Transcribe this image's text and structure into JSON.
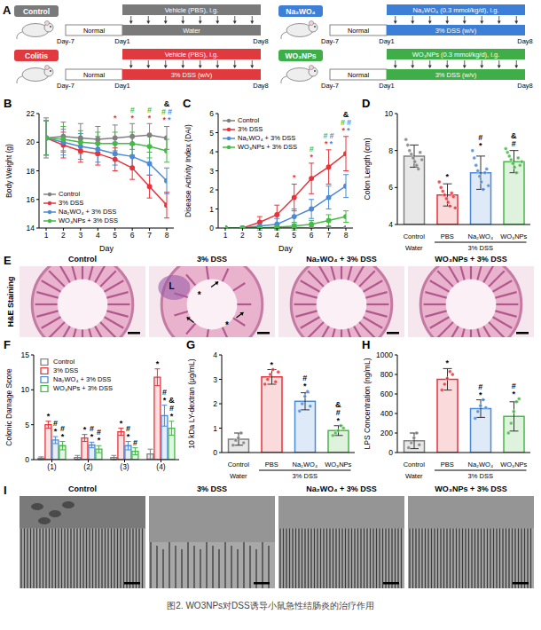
{
  "schematic": {
    "panel": "A",
    "groups": [
      {
        "label": "Control",
        "color": "#7a7a7a",
        "phase1": "Normal",
        "treatment": "Vehicle (PBS), i.g.",
        "drink": "Water",
        "days": [
          "Day-7",
          "Day1",
          "Day8"
        ]
      },
      {
        "label": "Colitis",
        "color": "#e0393e",
        "phase1": "Normal",
        "treatment": "Vehicle (PBS), i.g.",
        "drink": "3% DSS (w/v)",
        "days": [
          "Day-7",
          "Day1",
          "Day8"
        ]
      },
      {
        "label": "Na₂WO₄",
        "color": "#3d7fd6",
        "phase1": "Normal",
        "treatment": "Na₂WO₄ (0.3 mmol/kg/d), i.g.",
        "drink": "3% DSS (w/v)",
        "days": [
          "Day-7",
          "Day1",
          "Day8"
        ]
      },
      {
        "label": "WO₃NPs",
        "color": "#3fae49",
        "phase1": "Normal",
        "treatment": "WO₃NPs (0.3 mmol/kg/d), i.g.",
        "drink": "3% DSS (w/v)",
        "days": [
          "Day-7",
          "Day1",
          "Day8"
        ]
      }
    ]
  },
  "chart_data": [
    {
      "panel": "B",
      "type": "line",
      "x": [
        1,
        2,
        3,
        4,
        5,
        6,
        7,
        8
      ],
      "xlim": [
        1,
        8
      ],
      "xticks": [
        1,
        2,
        3,
        4,
        5,
        6,
        7,
        8
      ],
      "ylim": [
        14,
        22
      ],
      "yticks": [
        14,
        16,
        18,
        20,
        22
      ],
      "x_label": "Day",
      "y_label": "Body Weight (g)",
      "legend": "bottom-left",
      "marker": "circle",
      "series": [
        {
          "name": "Control",
          "color": "#808080",
          "values": [
            20.3,
            20.4,
            20.3,
            20.2,
            20.3,
            20.4,
            20.5,
            20.3
          ],
          "errors": [
            1.4,
            1.0,
            1.0,
            0.9,
            0.9,
            0.9,
            0.8,
            0.8
          ]
        },
        {
          "name": "3% DSS",
          "color": "#e8333a",
          "values": [
            20.3,
            19.8,
            19.4,
            19.2,
            18.8,
            18.2,
            16.9,
            15.6
          ],
          "errors": [
            1.2,
            0.9,
            0.8,
            0.8,
            0.8,
            0.8,
            0.8,
            0.9
          ]
        },
        {
          "name": "Na₂WO₄ + 3% DSS",
          "color": "#4a8ad8",
          "values": [
            20.3,
            20.0,
            19.7,
            19.5,
            19.2,
            19.0,
            18.5,
            17.3
          ],
          "errors": [
            1.2,
            0.9,
            0.9,
            0.9,
            0.8,
            0.8,
            0.8,
            0.9
          ]
        },
        {
          "name": "WO₃NPs + 3% DSS",
          "color": "#46b946",
          "values": [
            20.3,
            20.2,
            20.0,
            19.9,
            19.9,
            19.9,
            19.7,
            19.4
          ],
          "errors": [
            1.2,
            0.9,
            0.8,
            0.8,
            0.8,
            0.8,
            0.8,
            0.8
          ]
        }
      ],
      "annotations": [
        {
          "x": 5,
          "y": 21.5,
          "texts": [
            [
              {
                "text": "*",
                "color": "#e8333a"
              }
            ]
          ]
        },
        {
          "x": 6,
          "y": 21.5,
          "texts": [
            [
              {
                "text": "#",
                "color": "#46b946"
              }
            ],
            [
              {
                "text": "*",
                "color": "#e8333a"
              }
            ]
          ]
        },
        {
          "x": 7,
          "y": 21.5,
          "texts": [
            [
              {
                "text": "#",
                "color": "#46b946"
              }
            ],
            [
              {
                "text": "*",
                "color": "#e8333a"
              }
            ]
          ]
        },
        {
          "x": 8,
          "y": 21.4,
          "texts": [
            [
              {
                "text": "&",
                "color": "#000000"
              }
            ],
            [
              {
                "text": "#",
                "color": "#46b946"
              },
              {
                "text": "#",
                "color": "#4a8ad8"
              }
            ],
            [
              {
                "text": "*",
                "color": "#e8333a"
              },
              {
                "text": "*",
                "color": "#4a8ad8"
              }
            ]
          ]
        }
      ]
    },
    {
      "panel": "C",
      "type": "line",
      "x": [
        1,
        2,
        3,
        4,
        5,
        6,
        7,
        8
      ],
      "xlim": [
        1,
        8
      ],
      "xticks": [
        1,
        2,
        3,
        4,
        5,
        6,
        7,
        8
      ],
      "ylim": [
        0,
        6
      ],
      "yticks": [
        0,
        1,
        2,
        3,
        4,
        5,
        6
      ],
      "x_label": "Day",
      "y_label": "Disease Activity Index (DAI)",
      "legend": "top-left",
      "marker": "circle",
      "series": [
        {
          "name": "Control",
          "color": "#808080",
          "values": [
            0,
            0,
            0,
            0,
            0,
            0,
            0,
            0
          ],
          "errors": [
            0,
            0,
            0,
            0,
            0,
            0,
            0,
            0
          ]
        },
        {
          "name": "3% DSS",
          "color": "#e8333a",
          "values": [
            0,
            0,
            0.3,
            0.7,
            1.6,
            2.6,
            3.2,
            3.9
          ],
          "errors": [
            0,
            0,
            0.3,
            0.5,
            0.7,
            0.8,
            0.9,
            0.9
          ]
        },
        {
          "name": "Na₂WO₄ + 3% DSS",
          "color": "#4a8ad8",
          "values": [
            0,
            0,
            0.1,
            0.2,
            0.6,
            1.0,
            1.6,
            2.2
          ],
          "errors": [
            0,
            0,
            0.2,
            0.3,
            0.4,
            0.5,
            0.6,
            0.6
          ]
        },
        {
          "name": "WO₃NPs + 3% DSS",
          "color": "#46b946",
          "values": [
            0,
            0,
            0,
            0.05,
            0.1,
            0.2,
            0.4,
            0.6
          ],
          "errors": [
            0,
            0,
            0,
            0.1,
            0.2,
            0.2,
            0.3,
            0.3
          ]
        }
      ],
      "annotations": [
        {
          "x": 5,
          "y": 2.5,
          "texts": [
            [
              {
                "text": "*",
                "color": "#e8333a"
              }
            ]
          ]
        },
        {
          "x": 6,
          "y": 3.6,
          "texts": [
            [
              {
                "text": "#",
                "color": "#46b946"
              }
            ],
            [
              {
                "text": "*",
                "color": "#e8333a"
              }
            ]
          ]
        },
        {
          "x": 7,
          "y": 4.3,
          "texts": [
            [
              {
                "text": "#",
                "color": "#46b946"
              },
              {
                "text": "#",
                "color": "#4a8ad8"
              }
            ],
            [
              {
                "text": "*",
                "color": "#e8333a"
              },
              {
                "text": "*",
                "color": "#4a8ad8"
              }
            ]
          ]
        },
        {
          "x": 8,
          "y": 5.0,
          "texts": [
            [
              {
                "text": "&",
                "color": "#000000"
              }
            ],
            [
              {
                "text": "#",
                "color": "#46b946"
              },
              {
                "text": "#",
                "color": "#4a8ad8"
              }
            ],
            [
              {
                "text": "*",
                "color": "#e8333a"
              },
              {
                "text": "*",
                "color": "#4a8ad8"
              }
            ]
          ]
        }
      ]
    },
    {
      "panel": "D",
      "type": "bar",
      "categories": [
        "Control",
        "PBS",
        "Na₂WO₄",
        "WO₃NPs"
      ],
      "category_groups": [
        {
          "label": "Water",
          "members": [
            "Control"
          ]
        },
        {
          "label": "3% DSS",
          "members": [
            "PBS",
            "Na₂WO₄",
            "WO₃NPs"
          ]
        }
      ],
      "values": [
        7.7,
        5.6,
        6.8,
        7.4
      ],
      "errors": [
        0.6,
        0.6,
        0.9,
        0.6
      ],
      "colors": [
        "#808080",
        "#e8333a",
        "#4a8ad8",
        "#46b946"
      ],
      "points": [
        [
          8.6,
          8.3,
          8.0,
          7.8,
          7.6,
          7.4,
          7.2,
          7.0,
          7.9,
          7.5
        ],
        [
          6.3,
          6.0,
          5.8,
          5.6,
          5.4,
          5.2,
          5.0,
          5.7,
          5.5,
          4.9
        ],
        [
          8.0,
          7.6,
          7.2,
          6.9,
          6.6,
          6.3,
          5.9,
          6.8,
          7.0,
          6.1
        ],
        [
          8.1,
          7.9,
          7.7,
          7.5,
          7.3,
          7.1,
          6.8,
          7.6,
          7.2,
          7.4
        ]
      ],
      "significance": [
        null,
        [
          "*"
        ],
        [
          "#",
          "*"
        ],
        [
          "&",
          "#"
        ]
      ],
      "ylim": [
        4,
        10
      ],
      "yticks": [
        4,
        6,
        8,
        10
      ],
      "y_label": "Colon Length (cm)"
    },
    {
      "panel": "F",
      "type": "bar",
      "categories": [
        "(1)",
        "(2)",
        "(3)",
        "(4)"
      ],
      "ylim": [
        0,
        15
      ],
      "yticks": [
        0,
        5,
        10,
        15
      ],
      "y_label": "Colonic Damage Score",
      "legend": "top-left",
      "series": [
        {
          "name": "Control",
          "color": "#808080",
          "values": [
            0.2,
            0.3,
            0.3,
            0.8
          ],
          "errors": [
            0.2,
            0.3,
            0.3,
            0.7
          ],
          "significance": [
            null,
            null,
            null,
            null
          ]
        },
        {
          "name": "3% DSS",
          "color": "#e8333a",
          "values": [
            5.0,
            3.1,
            4.0,
            11.8
          ],
          "errors": [
            0.5,
            0.5,
            0.5,
            1.2
          ],
          "significance": [
            [
              "*"
            ],
            [
              "*"
            ],
            [
              "*"
            ],
            [
              "*"
            ]
          ]
        },
        {
          "name": "Na₂WO₄ + 3% DSS",
          "color": "#4a8ad8",
          "values": [
            2.8,
            2.1,
            2.0,
            6.3
          ],
          "errors": [
            0.5,
            0.4,
            0.6,
            1.5
          ],
          "significance": [
            [
              "#",
              "*"
            ],
            [
              "#",
              "*"
            ],
            [
              "#",
              "*"
            ],
            [
              "#",
              "*"
            ]
          ]
        },
        {
          "name": "WO₃NPs + 3% DSS",
          "color": "#46b946",
          "values": [
            2.0,
            1.5,
            1.2,
            4.5
          ],
          "errors": [
            0.6,
            0.5,
            0.5,
            1.0
          ],
          "significance": [
            [
              "#",
              "*"
            ],
            [
              "#",
              "*"
            ],
            [
              "#"
            ],
            [
              "&",
              "#",
              "*"
            ]
          ]
        }
      ]
    },
    {
      "panel": "G",
      "type": "bar",
      "categories": [
        "Control",
        "PBS",
        "Na₂WO₄",
        "WO₃NPs"
      ],
      "category_groups": [
        {
          "label": "Water",
          "members": [
            "Control"
          ]
        },
        {
          "label": "3% DSS",
          "members": [
            "PBS",
            "Na₂WO₄",
            "WO₃NPs"
          ]
        }
      ],
      "values": [
        0.55,
        3.1,
        2.1,
        0.9
      ],
      "errors": [
        0.25,
        0.3,
        0.35,
        0.2
      ],
      "colors": [
        "#808080",
        "#e8333a",
        "#4a8ad8",
        "#46b946"
      ],
      "points": [
        [
          0.3,
          0.5,
          0.6,
          0.8,
          0.4
        ],
        [
          2.8,
          3.0,
          3.2,
          3.4,
          2.9,
          3.3
        ],
        [
          1.7,
          2.0,
          2.3,
          2.5,
          1.9
        ],
        [
          0.7,
          0.8,
          0.9,
          1.1,
          1.0
        ]
      ],
      "significance": [
        null,
        [
          "*"
        ],
        [
          "#",
          "*"
        ],
        [
          "&",
          "#",
          "*"
        ]
      ],
      "ylim": [
        0,
        4
      ],
      "yticks": [
        0,
        1,
        2,
        3,
        4
      ],
      "y_label": "10 kDa LY-dextran (μg/mL)"
    },
    {
      "panel": "H",
      "type": "bar",
      "categories": [
        "Control",
        "PBS",
        "Na₂WO₄",
        "WO₃NPs"
      ],
      "category_groups": [
        {
          "label": "Water",
          "members": [
            "Control"
          ]
        },
        {
          "label": "3% DSS",
          "members": [
            "PBS",
            "Na₂WO₄",
            "WO₃NPs"
          ]
        }
      ],
      "values": [
        120,
        750,
        450,
        370
      ],
      "errors": [
        80,
        110,
        90,
        150
      ],
      "colors": [
        "#808080",
        "#e8333a",
        "#4a8ad8",
        "#46b946"
      ],
      "points": [
        [
          50,
          100,
          150,
          200,
          80
        ],
        [
          640,
          700,
          760,
          830,
          800
        ],
        [
          350,
          420,
          480,
          540,
          460
        ],
        [
          200,
          300,
          420,
          520,
          550
        ]
      ],
      "significance": [
        null,
        [
          "*"
        ],
        [
          "#",
          "*"
        ],
        [
          "#",
          "*"
        ]
      ],
      "ylim": [
        0,
        1000
      ],
      "yticks": [
        0,
        200,
        400,
        600,
        800,
        1000
      ],
      "y_label": "LPS Concentration (ng/mL)"
    }
  ],
  "histology": {
    "panel": "E",
    "side_label": "H&E Staining",
    "titles": [
      "Control",
      "3% DSS",
      "Na₂WO₄ + 3% DSS",
      "WO₃NPs + 3% DSS"
    ],
    "marks": [
      null,
      [
        "L",
        "*",
        "*"
      ],
      null,
      null
    ]
  },
  "micrographs": {
    "panel": "I",
    "titles": [
      "Control",
      "3% DSS",
      "Na₂WO₄ + 3% DSS",
      "WO₃NPs + 3% DSS"
    ]
  },
  "caption": "图2. WO3NPs对DSS诱导小鼠急性结肠炎的治疗作用"
}
